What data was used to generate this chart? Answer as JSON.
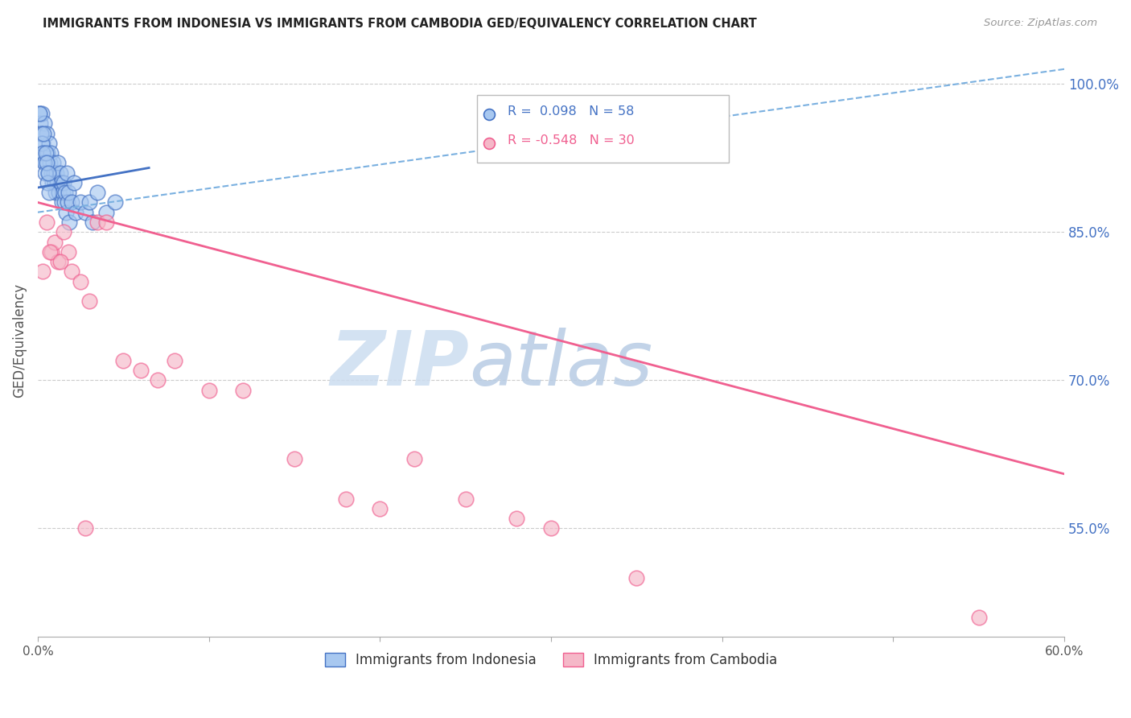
{
  "title": "IMMIGRANTS FROM INDONESIA VS IMMIGRANTS FROM CAMBODIA GED/EQUIVALENCY CORRELATION CHART",
  "source": "Source: ZipAtlas.com",
  "ylabel": "GED/Equivalency",
  "y_ticks_right": [
    55.0,
    70.0,
    85.0,
    100.0
  ],
  "x_min": 0.0,
  "x_max": 60.0,
  "y_min": 44.0,
  "y_max": 104.0,
  "legend_indonesia": "Immigrants from Indonesia",
  "legend_cambodia": "Immigrants from Cambodia",
  "R_indonesia": 0.098,
  "N_indonesia": 58,
  "R_cambodia": -0.548,
  "N_cambodia": 30,
  "color_indonesia": "#a8c8f0",
  "color_cambodia": "#f5b8c8",
  "color_trend_indonesia": "#4472c4",
  "color_trend_cambodia": "#f06090",
  "color_dashed": "#7ab0e0",
  "color_axis_right": "#4472c4",
  "color_grid": "#cccccc",
  "watermark_zip": "ZIP",
  "watermark_atlas": "atlas",
  "indonesia_x": [
    0.1,
    0.15,
    0.2,
    0.25,
    0.3,
    0.35,
    0.4,
    0.45,
    0.5,
    0.55,
    0.6,
    0.65,
    0.7,
    0.75,
    0.8,
    0.85,
    0.9,
    0.95,
    1.0,
    1.05,
    1.1,
    1.15,
    1.2,
    1.25,
    1.3,
    1.35,
    1.4,
    1.45,
    1.5,
    1.55,
    1.6,
    1.65,
    1.7,
    1.75,
    1.8,
    1.85,
    2.0,
    2.1,
    2.2,
    2.5,
    2.8,
    3.0,
    3.2,
    3.5,
    4.0,
    4.5,
    0.12,
    0.18,
    0.22,
    0.28,
    0.32,
    0.38,
    0.42,
    0.48,
    0.52,
    0.58,
    0.62,
    0.68
  ],
  "indonesia_y": [
    97,
    96,
    95,
    97,
    94,
    93,
    96,
    92,
    95,
    93,
    91,
    94,
    92,
    93,
    91,
    90,
    92,
    91,
    90,
    89,
    91,
    90,
    92,
    89,
    91,
    90,
    88,
    89,
    90,
    88,
    89,
    87,
    91,
    88,
    89,
    86,
    88,
    90,
    87,
    88,
    87,
    88,
    86,
    89,
    87,
    88,
    97,
    95,
    94,
    93,
    95,
    92,
    91,
    93,
    92,
    90,
    91,
    89
  ],
  "cambodia_x": [
    0.3,
    0.5,
    0.8,
    1.0,
    1.2,
    1.5,
    1.8,
    2.0,
    2.5,
    3.0,
    3.5,
    4.0,
    5.0,
    6.0,
    7.0,
    8.0,
    10.0,
    12.0,
    15.0,
    18.0,
    20.0,
    22.0,
    25.0,
    28.0,
    30.0,
    0.7,
    1.3,
    2.8,
    35.0,
    55.0
  ],
  "cambodia_y": [
    81,
    86,
    83,
    84,
    82,
    85,
    83,
    81,
    80,
    78,
    86,
    86,
    72,
    71,
    70,
    72,
    69,
    69,
    62,
    58,
    57,
    62,
    58,
    56,
    55,
    83,
    82,
    55,
    50,
    46
  ],
  "trend_indo_x0": 0.0,
  "trend_indo_x1": 6.5,
  "trend_indo_y0": 89.5,
  "trend_indo_y1": 91.5,
  "trend_camb_x0": 0.0,
  "trend_camb_x1": 60.0,
  "trend_camb_y0": 88.0,
  "trend_camb_y1": 60.5,
  "dashed_x0": 0.0,
  "dashed_x1": 60.0,
  "dashed_y0": 87.0,
  "dashed_y1": 101.5
}
